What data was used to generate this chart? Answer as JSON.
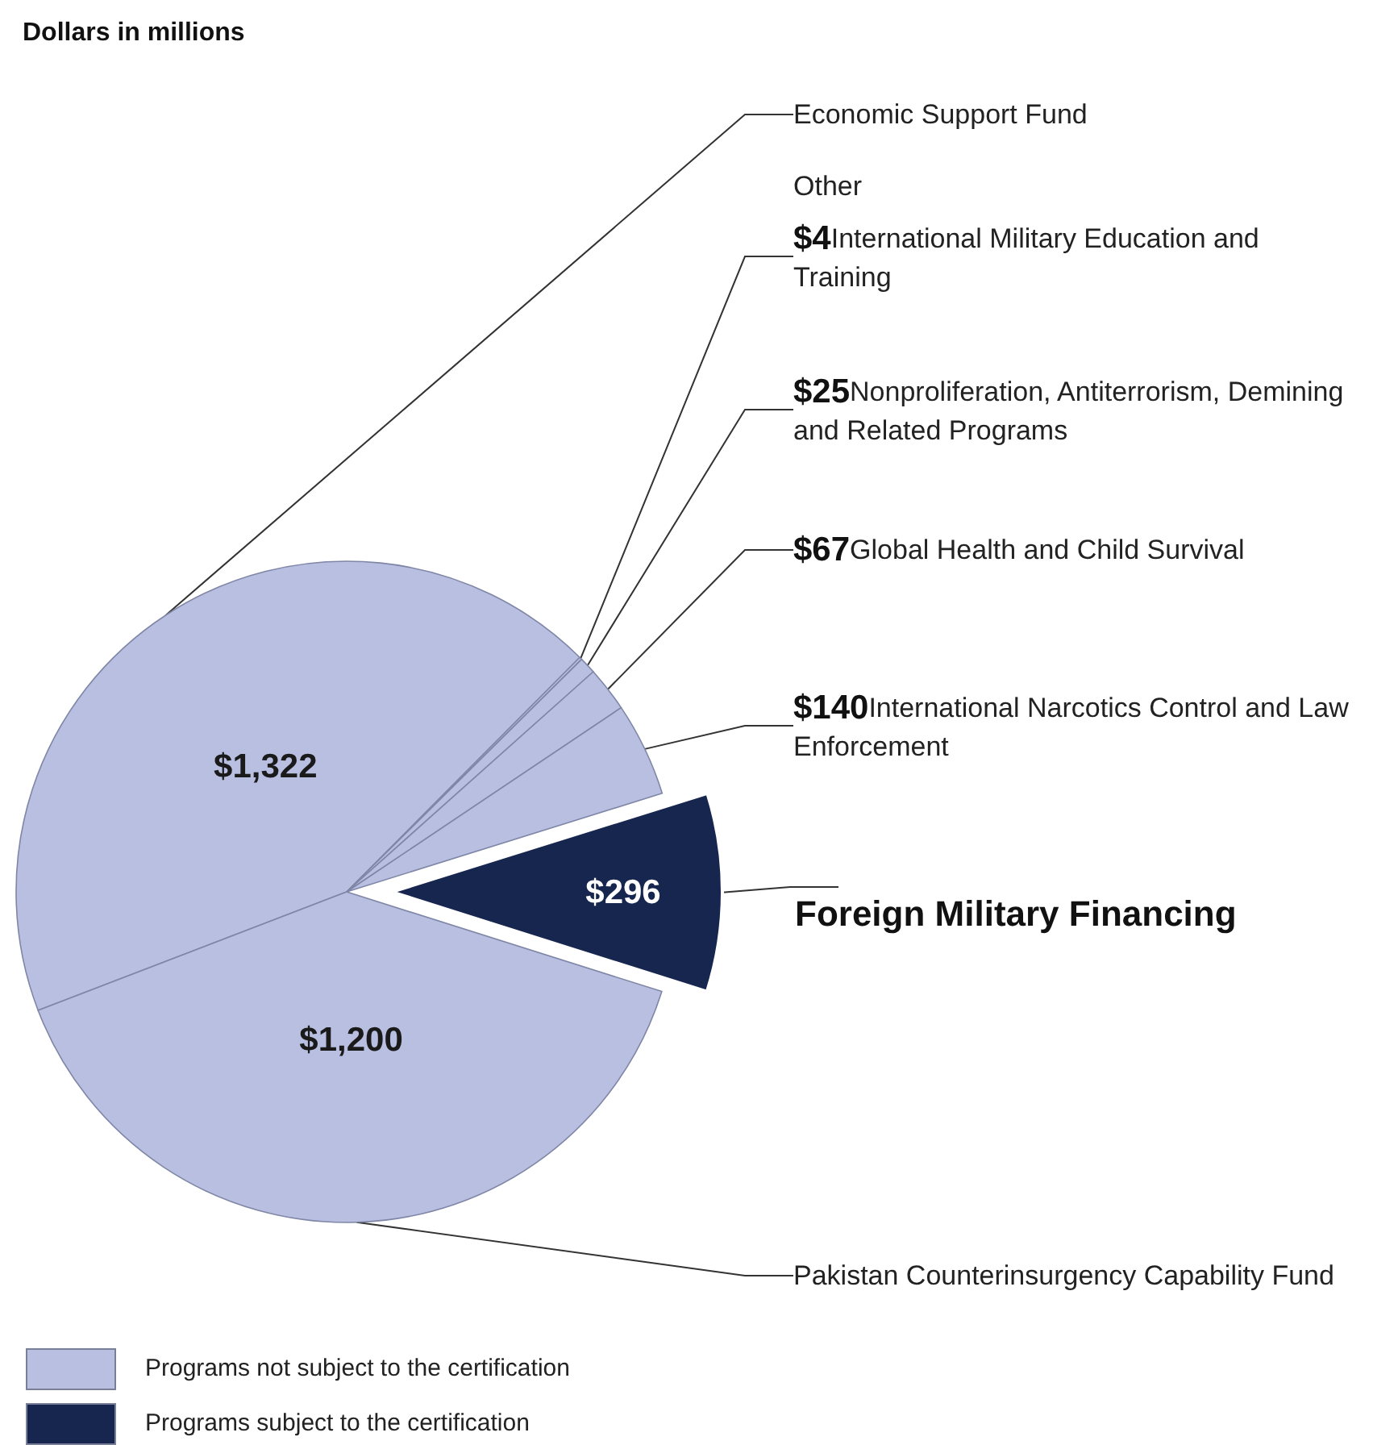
{
  "chart_data": {
    "type": "pie",
    "title": "Dollars in millions",
    "categories": [
      "Economic Support Fund",
      "International Military Education and Training",
      "Nonproliferation, Antiterrorism, Demining and Related Programs",
      "Global Health and Child Survival",
      "International Narcotics Control and Law Enforcement",
      "Foreign Military Financing",
      "Pakistan Counterinsurgency Capability Fund"
    ],
    "values": [
      1322,
      4,
      25,
      67,
      140,
      296,
      1200
    ],
    "value_labels": [
      "$1,322",
      "$4",
      "$25",
      "$67",
      "$140",
      "$296",
      "$1,200"
    ],
    "colors": [
      "#b8bfe0",
      "#b8bfe0",
      "#b8bfe0",
      "#b8bfe0",
      "#b8bfe0",
      "#16264f",
      "#b8bfe0"
    ],
    "annotations": [
      "Other",
      "Programs not subject to the certification",
      "Programs subject to the certification"
    ],
    "legend": false
  }
}
